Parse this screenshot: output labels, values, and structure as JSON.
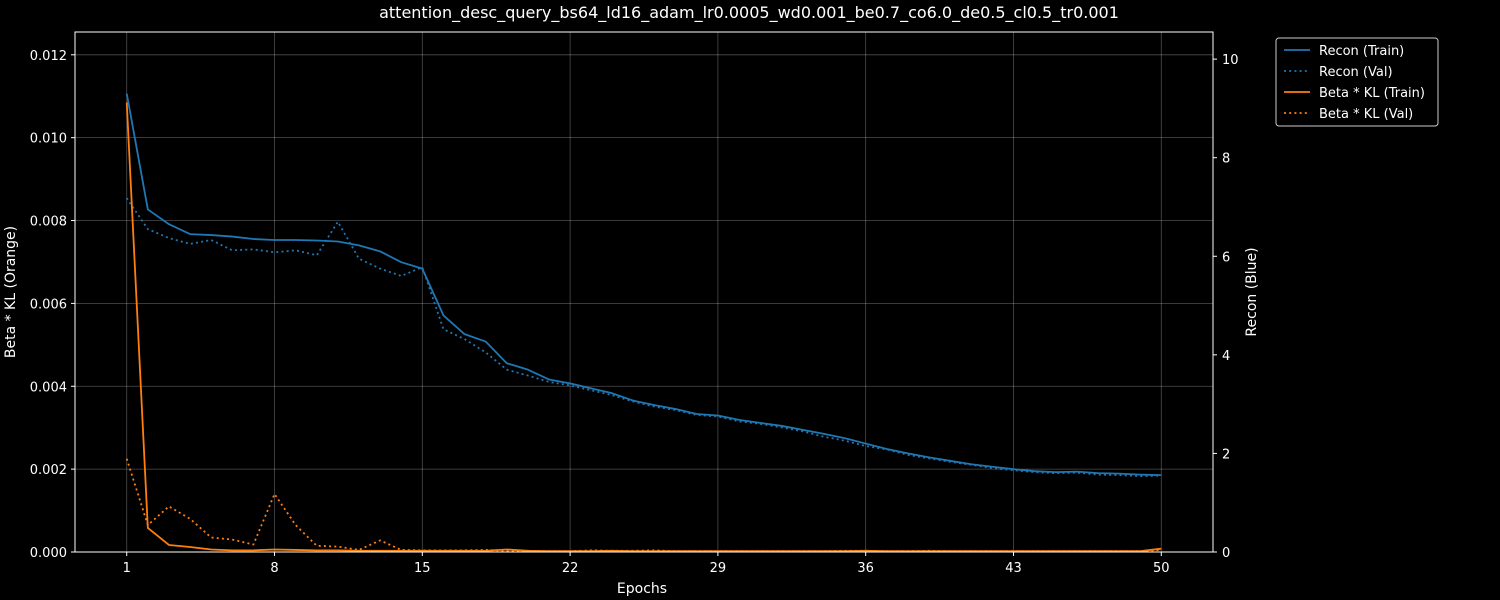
{
  "chart_data": {
    "type": "line",
    "title": "attention_desc_query_bs64_ld16_adam_lr0.0005_wd0.001_be0.7_co6.0_de0.5_cl0.5_tr0.001",
    "xlabel": "Epochs",
    "ylabel_left": "Beta * KL (Orange)",
    "ylabel_right": "Recon (Blue)",
    "xlim": [
      -1.45,
      52.45
    ],
    "ylim_left": [
      0,
      0.01255
    ],
    "ylim_right": [
      0,
      10.55
    ],
    "x_ticks": [
      1,
      8,
      15,
      22,
      29,
      36,
      43,
      50
    ],
    "y_ticks_left": [
      "0.000",
      "0.002",
      "0.004",
      "0.006",
      "0.008",
      "0.010",
      "0.012"
    ],
    "y_ticks_right": [
      "0",
      "2",
      "4",
      "6",
      "8",
      "10"
    ],
    "grid": true,
    "legend_position": "outside-top-right",
    "colors": {
      "blue": "#1f77b4",
      "orange": "#ff7f0e",
      "background": "#000000",
      "foreground": "#ffffff"
    },
    "x": [
      1,
      2,
      3,
      4,
      5,
      6,
      7,
      8,
      9,
      10,
      11,
      12,
      13,
      14,
      15,
      16,
      17,
      18,
      19,
      20,
      21,
      22,
      23,
      24,
      25,
      26,
      27,
      28,
      29,
      30,
      31,
      32,
      33,
      34,
      35,
      36,
      37,
      38,
      39,
      40,
      41,
      42,
      43,
      44,
      45,
      46,
      47,
      48,
      49,
      50
    ],
    "series": [
      {
        "name": "Recon (Train)",
        "axis": "right",
        "color": "#1f77b4",
        "style": "solid",
        "values": [
          9.3,
          6.95,
          6.65,
          6.45,
          6.43,
          6.4,
          6.35,
          6.33,
          6.33,
          6.32,
          6.3,
          6.22,
          6.1,
          5.88,
          5.75,
          4.8,
          4.42,
          4.27,
          3.83,
          3.7,
          3.5,
          3.42,
          3.32,
          3.22,
          3.07,
          2.98,
          2.9,
          2.8,
          2.77,
          2.68,
          2.62,
          2.56,
          2.48,
          2.4,
          2.31,
          2.2,
          2.09,
          2.0,
          1.92,
          1.85,
          1.78,
          1.73,
          1.68,
          1.64,
          1.62,
          1.63,
          1.6,
          1.59,
          1.57,
          1.56
        ]
      },
      {
        "name": "Recon (Val)",
        "axis": "right",
        "color": "#1f77b4",
        "style": "dotted",
        "values": [
          7.18,
          6.55,
          6.37,
          6.25,
          6.33,
          6.12,
          6.14,
          6.08,
          6.12,
          6.02,
          6.7,
          5.95,
          5.75,
          5.6,
          5.78,
          4.52,
          4.32,
          4.05,
          3.7,
          3.58,
          3.45,
          3.38,
          3.28,
          3.18,
          3.05,
          2.95,
          2.88,
          2.78,
          2.75,
          2.65,
          2.6,
          2.53,
          2.45,
          2.34,
          2.26,
          2.15,
          2.08,
          1.97,
          1.9,
          1.83,
          1.77,
          1.7,
          1.66,
          1.62,
          1.6,
          1.61,
          1.57,
          1.56,
          1.54,
          1.55
        ]
      },
      {
        "name": "Beta * KL (Train)",
        "axis": "left",
        "color": "#ff7f0e",
        "style": "solid",
        "values": [
          0.01085,
          0.00058,
          0.00017,
          0.00012,
          6e-05,
          4e-05,
          4e-05,
          6e-05,
          5e-05,
          4e-05,
          4e-05,
          3e-05,
          3e-05,
          3e-05,
          3e-05,
          3e-05,
          3e-05,
          3e-05,
          6e-05,
          3e-05,
          2e-05,
          2e-05,
          2e-05,
          3e-05,
          2e-05,
          2e-05,
          2e-05,
          2e-05,
          2e-05,
          2e-05,
          2e-05,
          2e-05,
          2e-05,
          2e-05,
          2e-05,
          3e-05,
          2e-05,
          2e-05,
          2e-05,
          2e-05,
          2e-05,
          2e-05,
          2e-05,
          2e-05,
          2e-05,
          2e-05,
          2e-05,
          2e-05,
          2e-05,
          8e-05
        ]
      },
      {
        "name": "Beta * KL (Val)",
        "axis": "left",
        "color": "#ff7f0e",
        "style": "dotted",
        "values": [
          0.00225,
          0.00065,
          0.0011,
          0.0008,
          0.00035,
          0.0003,
          0.00018,
          0.0014,
          0.00065,
          0.00015,
          0.00013,
          5e-05,
          0.00028,
          5e-05,
          4e-05,
          4e-05,
          4e-05,
          5e-05,
          3e-05,
          3e-05,
          2e-05,
          2e-05,
          4e-05,
          3e-05,
          3e-05,
          4e-05,
          2e-05,
          2e-05,
          2e-05,
          2e-05,
          2e-05,
          2e-05,
          2e-05,
          2e-05,
          3e-05,
          3e-05,
          2e-05,
          2e-05,
          3e-05,
          2e-05,
          2e-05,
          2e-05,
          2e-05,
          2e-05,
          2e-05,
          2e-05,
          2e-05,
          2e-05,
          2e-05,
          5e-05
        ]
      }
    ]
  }
}
